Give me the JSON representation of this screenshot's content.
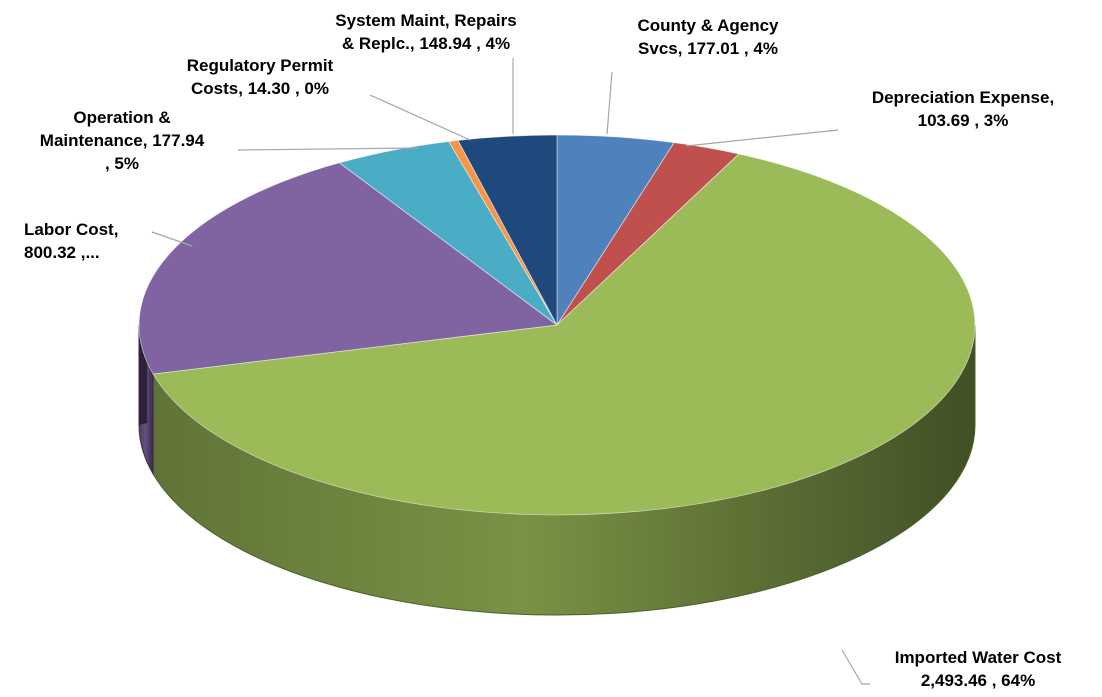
{
  "chart_data": {
    "type": "pie",
    "title": "",
    "style": "3d",
    "slices": [
      {
        "category": "County & Agency Svcs",
        "value": 177.01,
        "percent": "4%",
        "color": "#4f81bd",
        "label_lines": [
          "County & Agency",
          "Svcs,  177.01 , 4%"
        ]
      },
      {
        "category": "Depreciation Expense",
        "value": 103.69,
        "percent": "3%",
        "color": "#c0504d",
        "label_lines": [
          "Depreciation Expense,",
          "103.69 , 3%"
        ]
      },
      {
        "category": "Imported Water Cost",
        "value": 2493.46,
        "percent": "64%",
        "color": "#9bbb59",
        "label_lines": [
          "Imported Water Cost",
          "2,493.46 , 64%"
        ]
      },
      {
        "category": "Labor Cost",
        "value": 800.32,
        "percent": "",
        "color": "#8064a2",
        "label_lines": [
          "Labor Cost,",
          "800.32 ,..."
        ]
      },
      {
        "category": "Operation & Maintenance",
        "value": 177.94,
        "percent": "5%",
        "color": "#4bacc6",
        "label_lines": [
          "Operation &",
          "Maintenance,  177.94",
          ", 5%"
        ]
      },
      {
        "category": "Regulatory Permit Costs",
        "value": 14.3,
        "percent": "0%",
        "color": "#f79646",
        "label_lines": [
          "Regulatory Permit",
          "Costs,  14.30 , 0%"
        ]
      },
      {
        "category": "System Maint, Repairs & Replc.",
        "value": 148.94,
        "percent": "4%",
        "color": "#1f497d",
        "label_lines": [
          "System Maint, Repairs",
          "& Replc.,  148.94 , 4%"
        ]
      }
    ]
  }
}
